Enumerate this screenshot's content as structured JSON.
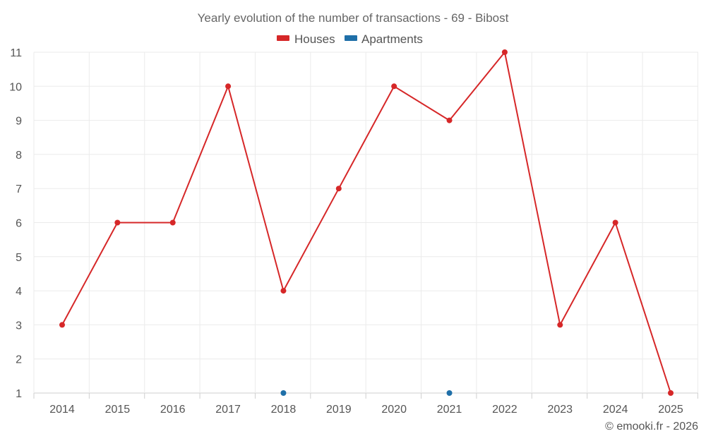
{
  "chart_data": {
    "type": "line",
    "title": "Yearly evolution of the number of transactions - 69 - Bibost",
    "xlabel": "",
    "ylabel": "",
    "categories": [
      "2014",
      "2015",
      "2016",
      "2017",
      "2018",
      "2019",
      "2020",
      "2021",
      "2022",
      "2023",
      "2024",
      "2025"
    ],
    "ylim": [
      1,
      11
    ],
    "yticks": [
      1,
      2,
      3,
      4,
      5,
      6,
      7,
      8,
      9,
      10,
      11
    ],
    "grid": true,
    "legend_position": "top-center",
    "series": [
      {
        "name": "Houses",
        "color": "#d62728",
        "values": [
          3,
          6,
          6,
          10,
          4,
          7,
          10,
          9,
          11,
          3,
          6,
          1
        ]
      },
      {
        "name": "Apartments",
        "color": "#1f6fa8",
        "values": [
          null,
          null,
          null,
          null,
          1,
          null,
          null,
          1,
          null,
          null,
          null,
          null
        ]
      }
    ]
  },
  "credit": "© emooki.fr - 2026"
}
